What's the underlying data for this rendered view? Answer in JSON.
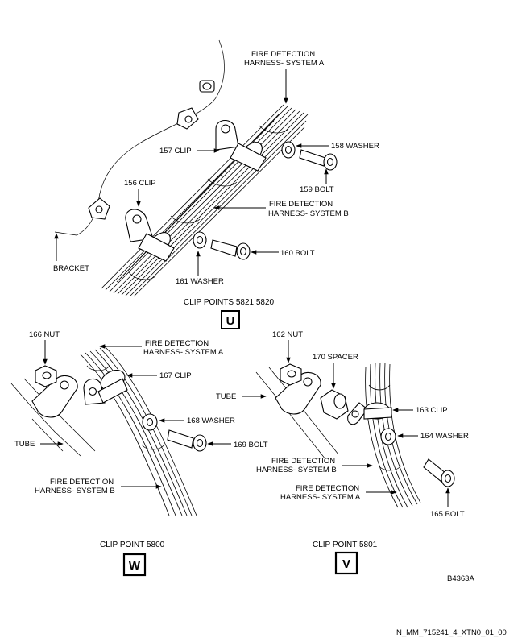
{
  "view_u": {
    "harness_a": [
      "FIRE DETECTION",
      "HARNESS- SYSTEM A"
    ],
    "harness_b": [
      "FIRE DETECTION",
      "HARNESS- SYSTEM B"
    ],
    "clip_157": "157 CLIP",
    "clip_156": "156 CLIP",
    "washer_158": "158 WASHER",
    "bolt_159": "159 BOLT",
    "bolt_160": "160 BOLT",
    "washer_161": "161 WASHER",
    "bracket": "BRACKET",
    "caption": "CLIP POINTS 5821,5820",
    "marker": "U"
  },
  "view_w": {
    "nut_166": "166 NUT",
    "harness_a": [
      "FIRE DETECTION",
      "HARNESS- SYSTEM A"
    ],
    "clip_167": "167 CLIP",
    "washer_168": "168 WASHER",
    "bolt_169": "169 BOLT",
    "tube": "TUBE",
    "harness_b": [
      "FIRE DETECTION",
      "HARNESS- SYSTEM B"
    ],
    "caption": "CLIP POINT 5800",
    "marker": "W"
  },
  "view_v": {
    "nut_162": "162 NUT",
    "spacer_170": "170 SPACER",
    "tube": "TUBE",
    "clip_163": "163 CLIP",
    "washer_164": "164 WASHER",
    "harness_b": [
      "FIRE DETECTION",
      "HARNESS- SYSTEM B"
    ],
    "harness_a": [
      "FIRE DETECTION",
      "HARNESS- SYSTEM A"
    ],
    "bolt_165": "165 BOLT",
    "caption": "CLIP POINT 5801",
    "marker": "V"
  },
  "figure_code": "B4363A",
  "footer_code": "N_MM_715241_4_XTN0_01_00"
}
